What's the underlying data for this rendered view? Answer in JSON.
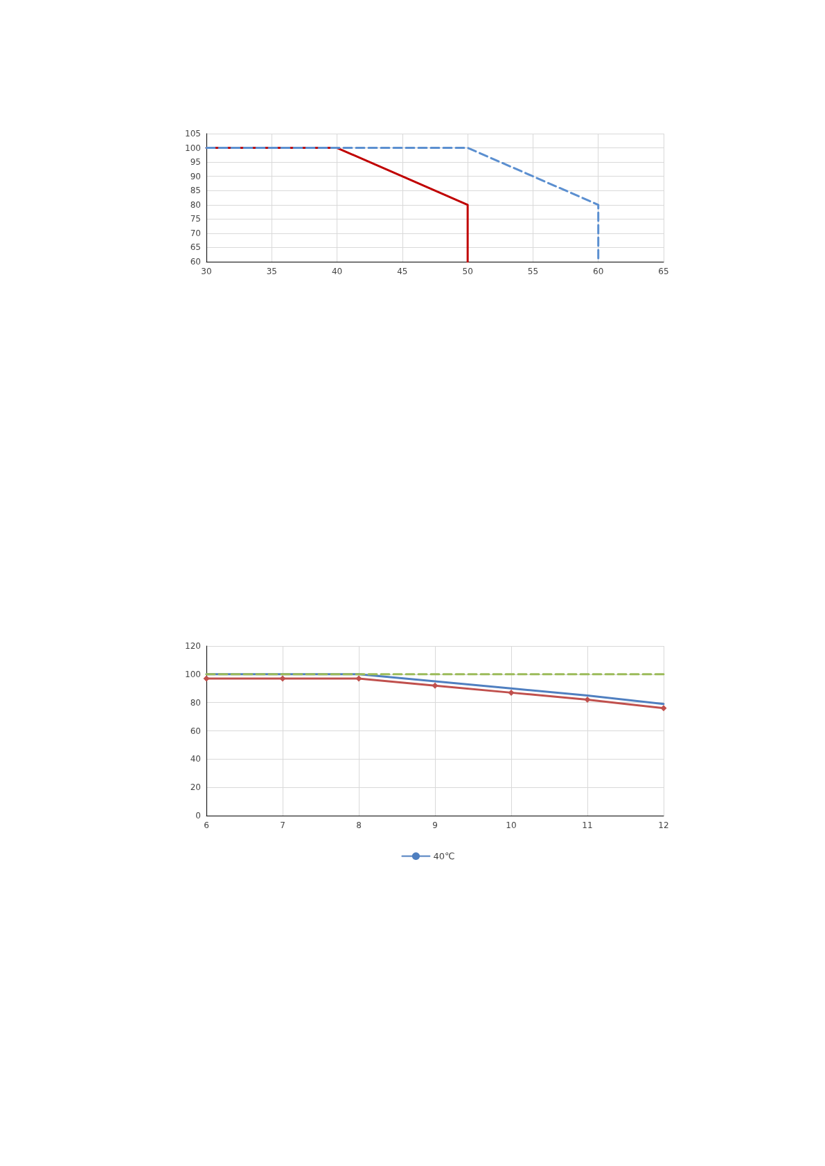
{
  "chart_data": [
    {
      "type": "line",
      "x": [
        30,
        40,
        50,
        50
      ],
      "xlim": [
        30,
        65
      ],
      "xticks": [
        30,
        35,
        40,
        45,
        50,
        55,
        60,
        65
      ],
      "ylim": [
        60,
        105
      ],
      "yticks": [
        60,
        65,
        70,
        75,
        80,
        85,
        90,
        95,
        100,
        105
      ],
      "grid": true,
      "legend": false,
      "marker": "none",
      "series": [
        {
          "color": "#c00000",
          "line_style": "solid",
          "values": [
            100,
            100,
            80,
            60
          ]
        },
        {
          "color": "#5b8fd0",
          "line_style": "dashed",
          "x": [
            30,
            50,
            60,
            60
          ],
          "values": [
            100,
            100,
            80,
            60
          ]
        }
      ]
    },
    {
      "type": "line",
      "x": [
        6,
        7,
        8,
        9,
        10,
        11,
        12
      ],
      "xlim": [
        6,
        12
      ],
      "xticks": [
        6,
        7,
        8,
        9,
        10,
        11,
        12
      ],
      "ylim": [
        0,
        120
      ],
      "yticks": [
        0,
        20,
        40,
        60,
        80,
        100,
        120
      ],
      "grid": true,
      "legend": "bottom",
      "series": [
        {
          "name": "40℃",
          "color": "#4f7fc0",
          "line_style": "solid",
          "marker": "none",
          "values": [
            100,
            100,
            100,
            95,
            90,
            85,
            79
          ]
        },
        {
          "color": "#c0504d",
          "line_style": "solid",
          "marker": "diamond",
          "values": [
            97,
            97,
            97,
            92,
            87,
            82,
            76
          ]
        },
        {
          "color": "#9bbb59",
          "line_style": "dashed",
          "marker": "none",
          "values": [
            100,
            100,
            100,
            100,
            100,
            100,
            100
          ]
        }
      ]
    }
  ]
}
